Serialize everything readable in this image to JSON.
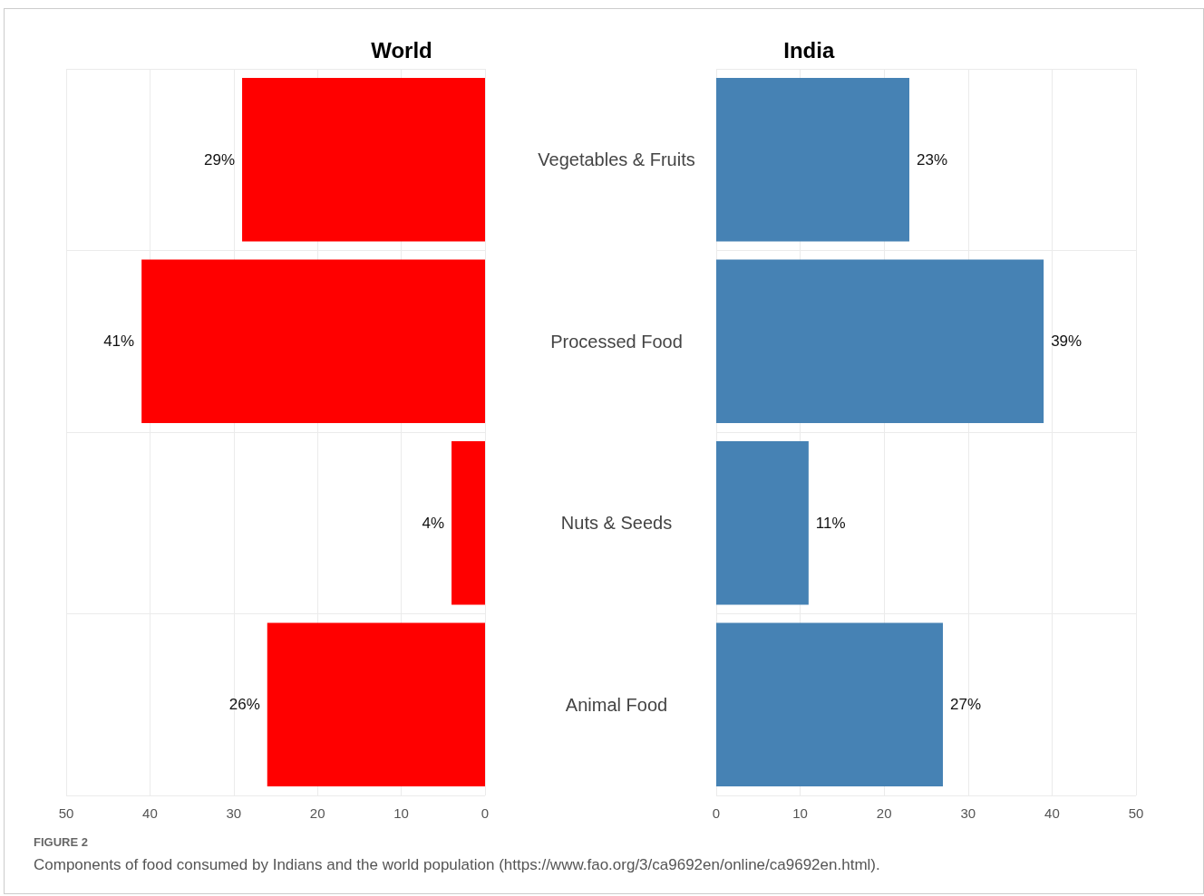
{
  "chart_data": [
    {
      "type": "bar",
      "orientation": "horizontal",
      "title": "World",
      "categories": [
        null,
        null,
        null,
        null
      ],
      "series": [
        {
          "color": "#ff0000",
          "values": [
            29,
            41,
            4,
            26
          ],
          "value_labels": [
            "29%",
            "41%",
            "4%",
            "26%"
          ]
        }
      ],
      "xlim": [
        50,
        0
      ],
      "xticks": [
        50,
        40,
        30,
        20,
        10,
        0
      ],
      "grid": true,
      "tick_labels": "x",
      "annotations": [
        "FIGURE 2",
        "Components of food consumed by Indians and the world population (https://www.fao.org/3/ca9692en/online/ca9692en.html)."
      ]
    },
    {
      "type": "bar",
      "orientation": "horizontal",
      "title": "India",
      "categories": [
        "Vegetables & Fruits",
        "Processed Food",
        "Nuts & Seeds",
        "Animal Food"
      ],
      "series": [
        {
          "color": "#4682b4",
          "values": [
            23,
            39,
            11,
            27
          ],
          "value_labels": [
            "23%",
            "39%",
            "11%",
            "27%"
          ]
        }
      ],
      "xlim": [
        0,
        50
      ],
      "xticks": [
        0,
        10,
        20,
        30,
        40,
        50
      ],
      "grid": true
    }
  ]
}
